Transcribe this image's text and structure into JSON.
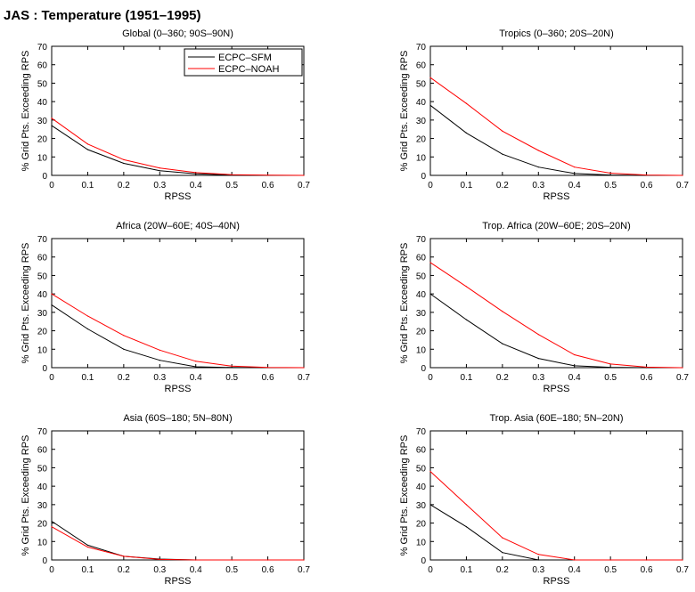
{
  "page": {
    "title": "JAS : Temperature (1951–1995)"
  },
  "colors": {
    "ECPC-SFM": "#000000",
    "ECPC-NOAH": "#ff0000"
  },
  "chart_data": [
    {
      "type": "line",
      "title": "Global (0–360; 90S–90N)",
      "xlabel": "RPSS",
      "ylabel": "% Grid Pts. Exceeding RPS",
      "xlim": [
        0,
        0.7
      ],
      "ylim": [
        0,
        70
      ],
      "xticks": [
        0,
        0.1,
        0.2,
        0.3,
        0.4,
        0.5,
        0.6,
        0.7
      ],
      "yticks": [
        0,
        10,
        20,
        30,
        40,
        50,
        60,
        70
      ],
      "grid": false,
      "legend": {
        "position": "top-right",
        "entries": [
          "ECPC–SFM",
          "ECPC–NOAH"
        ]
      },
      "x": [
        0,
        0.1,
        0.2,
        0.3,
        0.4,
        0.5,
        0.6,
        0.7
      ],
      "series": [
        {
          "name": "ECPC–SFM",
          "color": "#000000",
          "values": [
            27,
            14,
            6.5,
            2.5,
            0.8,
            0.2,
            0,
            0
          ]
        },
        {
          "name": "ECPC–NOAH",
          "color": "#ff0000",
          "values": [
            31,
            17,
            8.5,
            4,
            1.5,
            0.4,
            0.1,
            0
          ]
        }
      ]
    },
    {
      "type": "line",
      "title": "Tropics (0–360; 20S–20N)",
      "xlabel": "RPSS",
      "ylabel": "% Grid Pts. Exceeding RPS",
      "xlim": [
        0,
        0.7
      ],
      "ylim": [
        0,
        70
      ],
      "xticks": [
        0,
        0.1,
        0.2,
        0.3,
        0.4,
        0.5,
        0.6,
        0.7
      ],
      "yticks": [
        0,
        10,
        20,
        30,
        40,
        50,
        60,
        70
      ],
      "grid": false,
      "x": [
        0,
        0.1,
        0.2,
        0.3,
        0.4,
        0.5,
        0.6,
        0.7
      ],
      "series": [
        {
          "name": "ECPC–SFM",
          "color": "#000000",
          "values": [
            38,
            23,
            11.5,
            4.5,
            1,
            0.2,
            0,
            0
          ]
        },
        {
          "name": "ECPC–NOAH",
          "color": "#ff0000",
          "values": [
            53,
            39,
            24,
            13.5,
            4.5,
            1.2,
            0.2,
            0
          ]
        }
      ]
    },
    {
      "type": "line",
      "title": "Africa (20W–60E; 40S–40N)",
      "xlabel": "RPSS",
      "ylabel": "% Grid Pts. Exceeding RPS",
      "xlim": [
        0,
        0.7
      ],
      "ylim": [
        0,
        70
      ],
      "xticks": [
        0,
        0.1,
        0.2,
        0.3,
        0.4,
        0.5,
        0.6,
        0.7
      ],
      "yticks": [
        0,
        10,
        20,
        30,
        40,
        50,
        60,
        70
      ],
      "grid": false,
      "x": [
        0,
        0.1,
        0.2,
        0.3,
        0.4,
        0.5,
        0.6,
        0.7
      ],
      "series": [
        {
          "name": "ECPC–SFM",
          "color": "#000000",
          "values": [
            34,
            21,
            10,
            4,
            0.5,
            0.1,
            0,
            0
          ]
        },
        {
          "name": "ECPC–NOAH",
          "color": "#ff0000",
          "values": [
            40,
            28,
            17.5,
            9.5,
            3.5,
            0.8,
            0.1,
            0
          ]
        }
      ]
    },
    {
      "type": "line",
      "title": "Trop. Africa (20W–60E; 20S–20N)",
      "xlabel": "RPSS",
      "ylabel": "% Grid Pts. Exceeding RPS",
      "xlim": [
        0,
        0.7
      ],
      "ylim": [
        0,
        70
      ],
      "xticks": [
        0,
        0.1,
        0.2,
        0.3,
        0.4,
        0.5,
        0.6,
        0.7
      ],
      "yticks": [
        0,
        10,
        20,
        30,
        40,
        50,
        60,
        70
      ],
      "grid": false,
      "x": [
        0,
        0.1,
        0.2,
        0.3,
        0.4,
        0.5,
        0.6,
        0.7
      ],
      "series": [
        {
          "name": "ECPC–SFM",
          "color": "#000000",
          "values": [
            40,
            26,
            13,
            5,
            1,
            0.2,
            0,
            0
          ]
        },
        {
          "name": "ECPC–NOAH",
          "color": "#ff0000",
          "values": [
            57,
            44,
            30.5,
            18,
            7,
            2,
            0.3,
            0
          ]
        }
      ]
    },
    {
      "type": "line",
      "title": "Asia (60S–180; 5N–80N)",
      "xlabel": "RPSS",
      "ylabel": "% Grid Pts. Exceeding RPS",
      "xlim": [
        0,
        0.7
      ],
      "ylim": [
        0,
        70
      ],
      "xticks": [
        0,
        0.1,
        0.2,
        0.3,
        0.4,
        0.5,
        0.6,
        0.7
      ],
      "yticks": [
        0,
        10,
        20,
        30,
        40,
        50,
        60,
        70
      ],
      "grid": false,
      "x": [
        0,
        0.1,
        0.2,
        0.3,
        0.4,
        0.5,
        0.6,
        0.7
      ],
      "series": [
        {
          "name": "ECPC–SFM",
          "color": "#000000",
          "values": [
            21,
            8,
            2,
            0.5,
            0,
            0,
            0,
            0
          ]
        },
        {
          "name": "ECPC–NOAH",
          "color": "#ff0000",
          "values": [
            18,
            7,
            2,
            0.3,
            0,
            0,
            0,
            0
          ]
        }
      ]
    },
    {
      "type": "line",
      "title": "Trop. Asia (60E–180; 5N–20N)",
      "xlabel": "RPSS",
      "ylabel": "% Grid Pts. Exceeding RPS",
      "xlim": [
        0,
        0.7
      ],
      "ylim": [
        0,
        70
      ],
      "xticks": [
        0,
        0.1,
        0.2,
        0.3,
        0.4,
        0.5,
        0.6,
        0.7
      ],
      "yticks": [
        0,
        10,
        20,
        30,
        40,
        50,
        60,
        70
      ],
      "grid": false,
      "x": [
        0,
        0.1,
        0.2,
        0.3,
        0.4,
        0.5,
        0.6,
        0.7
      ],
      "series": [
        {
          "name": "ECPC–SFM",
          "color": "#000000",
          "values": [
            30,
            18,
            4,
            0,
            0,
            0,
            0,
            0
          ]
        },
        {
          "name": "ECPC–NOAH",
          "color": "#ff0000",
          "values": [
            48,
            30,
            12,
            3,
            0,
            0,
            0,
            0
          ]
        }
      ]
    }
  ]
}
